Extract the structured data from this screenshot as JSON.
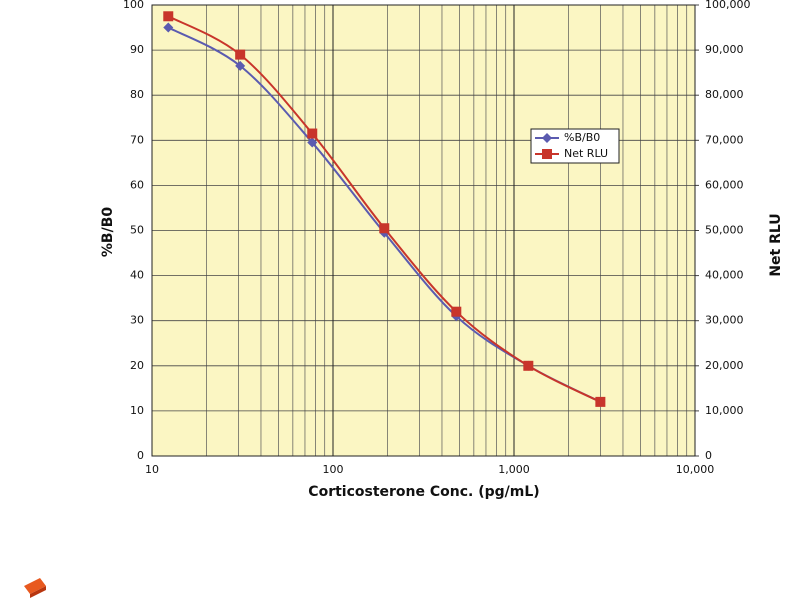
{
  "chart_data": {
    "type": "line",
    "x_label": "Corticosterone Conc. (pg/mL)",
    "y_label": "%B/B0",
    "y2_label": "Net RLU",
    "x": [
      12.3,
      30.7,
      76.8,
      192,
      480,
      1200,
      3000
    ],
    "series": [
      {
        "name": "%B/B0",
        "color": "#5b5bb0",
        "marker": "diamond",
        "values": [
          95,
          86.5,
          69.5,
          49.5,
          31,
          20,
          12
        ]
      },
      {
        "name": "Net RLU",
        "color": "#c8352b",
        "marker": "square",
        "axis": "y2",
        "values": [
          97500,
          89000,
          71500,
          50500,
          32000,
          20000,
          12000
        ]
      }
    ],
    "xlim": [
      10,
      10000
    ],
    "x_log": true,
    "xticks": [
      10,
      100,
      {
        "value": 1000,
        "label": "1,000"
      },
      {
        "value": 10000,
        "label": "10,000"
      }
    ],
    "ylim": [
      0,
      100
    ],
    "yticks": [
      0,
      10,
      20,
      30,
      40,
      50,
      60,
      70,
      80,
      90,
      100
    ],
    "y2lim": [
      0,
      100000
    ],
    "y2ticks": [
      0,
      {
        "value": 10000,
        "label": "10,000"
      },
      {
        "value": 20000,
        "label": "20,000"
      },
      {
        "value": 30000,
        "label": "30,000"
      },
      {
        "value": 40000,
        "label": "40,000"
      },
      {
        "value": 50000,
        "label": "50,000"
      },
      {
        "value": 60000,
        "label": "60,000"
      },
      {
        "value": 70000,
        "label": "70,000"
      },
      {
        "value": 80000,
        "label": "80,000"
      },
      {
        "value": 90000,
        "label": "90,000"
      },
      {
        "value": 100000,
        "label": "100,000"
      }
    ],
    "grid": true,
    "minor_grid": true,
    "smooth": true,
    "background": "#fbf6c3",
    "legend": "right"
  }
}
